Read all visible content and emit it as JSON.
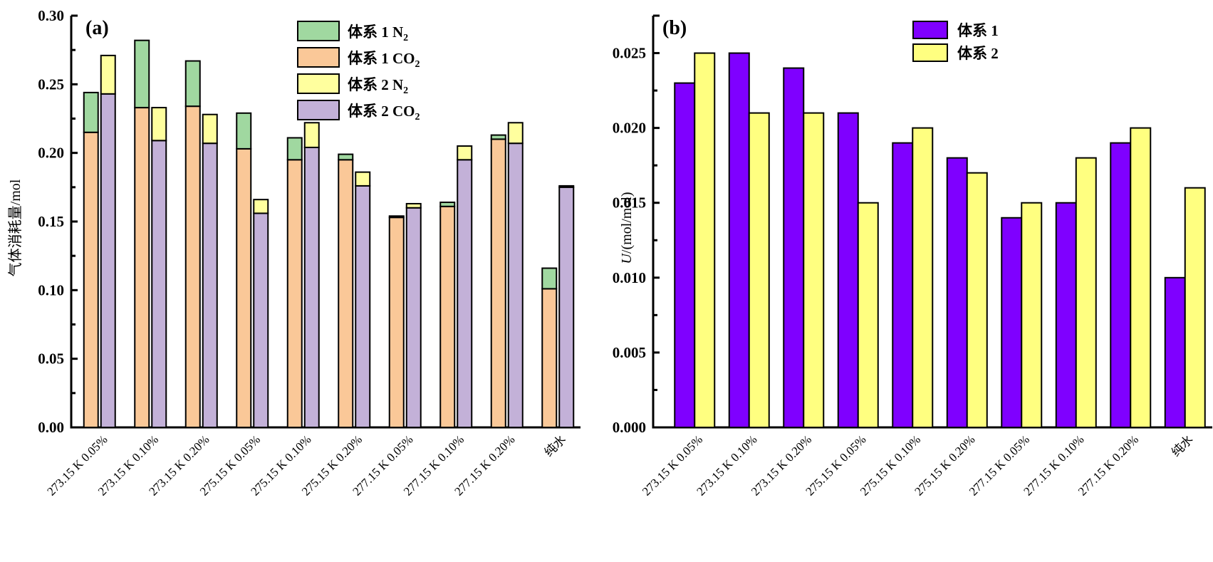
{
  "chart_data": [
    {
      "id": "a",
      "type": "bar",
      "stacked": true,
      "panel_label": "(a)",
      "title": "",
      "xlabel": "",
      "ylabel": "气体消耗量/mol",
      "ylim": [
        0,
        0.3
      ],
      "yticks": [
        "0.00",
        "0.05",
        "0.10",
        "0.15",
        "0.20",
        "0.25",
        "0.30"
      ],
      "ytick_values": [
        0,
        0.05,
        0.1,
        0.15,
        0.2,
        0.25,
        0.3
      ],
      "grid": false,
      "legend_position": "top-right",
      "categories": [
        "273.15 K 0.05%",
        "273.15 K 0.10%",
        "273.15 K 0.20%",
        "275.15 K 0.05%",
        "275.15 K 0.10%",
        "275.15 K 0.20%",
        "277.15 K 0.05%",
        "277.15 K 0.10%",
        "277.15 K 0.20%",
        "纯水"
      ],
      "groups": [
        {
          "name": "体系 1",
          "stack": [
            {
              "name": "体系 1 CO2",
              "legend_main": "体系 1 CO",
              "legend_sub": "2",
              "color": "#FAC898",
              "values": [
                0.215,
                0.233,
                0.234,
                0.203,
                0.195,
                0.195,
                0.153,
                0.161,
                0.21,
                0.101
              ]
            },
            {
              "name": "体系 1 N2",
              "legend_main": "体系 1 N",
              "legend_sub": "2",
              "color": "#A0D8A0",
              "values": [
                0.029,
                0.049,
                0.033,
                0.026,
                0.016,
                0.004,
                0.001,
                0.003,
                0.003,
                0.015
              ]
            }
          ]
        },
        {
          "name": "体系 2",
          "stack": [
            {
              "name": "体系 2 CO2",
              "legend_main": "体系 2 CO",
              "legend_sub": "2",
              "color": "#C3B1D8",
              "values": [
                0.243,
                0.209,
                0.207,
                0.156,
                0.204,
                0.176,
                0.16,
                0.195,
                0.207,
                0.175
              ]
            },
            {
              "name": "体系 2 N2",
              "legend_main": "体系 2 N",
              "legend_sub": "2",
              "color": "#FFFF9E",
              "values": [
                0.028,
                0.024,
                0.021,
                0.01,
                0.018,
                0.01,
                0.003,
                0.01,
                0.015,
                0.001
              ]
            }
          ]
        }
      ],
      "legend_order": [
        "体系 1 N2",
        "体系 1 CO2",
        "体系 2 N2",
        "体系 2 CO2"
      ]
    },
    {
      "id": "b",
      "type": "bar",
      "stacked": false,
      "panel_label": "(b)",
      "title": "",
      "xlabel": "",
      "ylabel": "U/(mol/mol)",
      "ylabel_italic_part": "U",
      "ylabel_rest": "/(mol/mol)",
      "ylim": [
        0,
        0.0275
      ],
      "yticks": [
        "0.000",
        "0.005",
        "0.010",
        "0.015",
        "0.020",
        "0.025"
      ],
      "ytick_values": [
        0,
        0.005,
        0.01,
        0.015,
        0.02,
        0.025
      ],
      "grid": false,
      "legend_position": "top-right",
      "categories": [
        "273.15 K 0.05%",
        "273.15 K 0.10%",
        "273.15 K 0.20%",
        "275.15 K 0.05%",
        "275.15 K 0.10%",
        "275.15 K 0.20%",
        "277.15 K 0.05%",
        "277.15 K 0.10%",
        "277.15 K 0.20%",
        "纯水"
      ],
      "series": [
        {
          "name": "体系  1",
          "color": "#7F00FF",
          "values": [
            0.023,
            0.025,
            0.024,
            0.021,
            0.019,
            0.018,
            0.014,
            0.015,
            0.019,
            0.01
          ]
        },
        {
          "name": "体系  2",
          "color": "#FFFF80",
          "values": [
            0.025,
            0.021,
            0.021,
            0.015,
            0.02,
            0.017,
            0.015,
            0.018,
            0.02,
            0.016
          ]
        }
      ]
    }
  ]
}
